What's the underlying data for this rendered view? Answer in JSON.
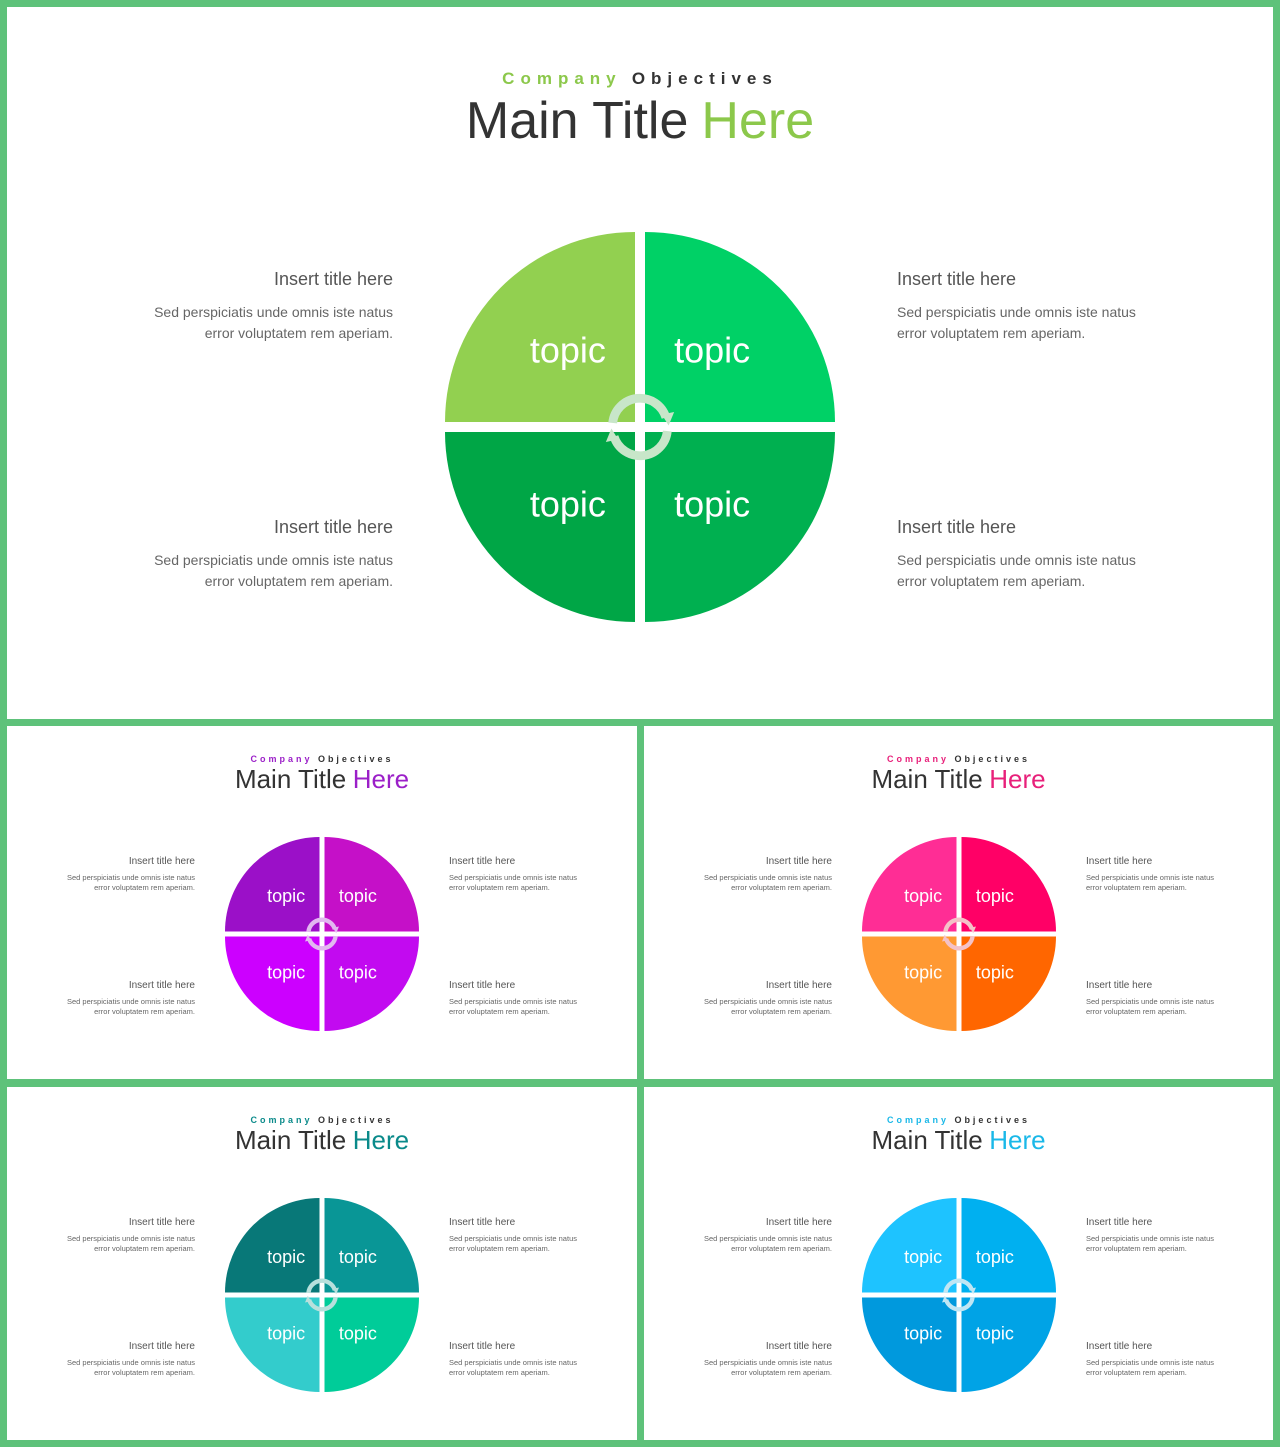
{
  "slides": [
    {
      "accent": "#8cc84b",
      "kicker": [
        "Company",
        "Objectives"
      ],
      "title": [
        "Main Title",
        "Here"
      ],
      "quadrant_colors": [
        "#92d050",
        "#00d166",
        "#00a646",
        "#00b050"
      ],
      "arrow_color": "#c8e6c9",
      "topics": [
        "topic",
        "topic",
        "topic",
        "topic"
      ],
      "blocks": [
        {
          "title": "Insert title here",
          "text": "Sed perspiciatis unde omnis iste natus error voluptatem  rem aperiam."
        },
        {
          "title": "Insert title here",
          "text": "Sed perspiciatis unde omnis iste natus error voluptatem  rem aperiam."
        },
        {
          "title": "Insert title here",
          "text": "Sed perspiciatis unde omnis iste natus error voluptatem  rem aperiam."
        },
        {
          "title": "Insert title here",
          "text": "Sed perspiciatis unde omnis iste natus error voluptatem  rem aperiam."
        }
      ]
    },
    {
      "accent": "#9b1fc8",
      "kicker": [
        "Company",
        "Objectives"
      ],
      "title": [
        "Main Title",
        "Here"
      ],
      "quadrant_colors": [
        "#9b10c8",
        "#c510c8",
        "#cc00ff",
        "#c20af0"
      ],
      "arrow_color": "#e2b8f0",
      "topics": [
        "topic",
        "topic",
        "topic",
        "topic"
      ],
      "blocks": [
        {
          "title": "Insert title here",
          "text": "Sed perspiciatis unde omnis iste natus error voluptatem  rem aperiam."
        },
        {
          "title": "Insert title here",
          "text": "Sed perspiciatis unde omnis iste natus error voluptatem  rem aperiam."
        },
        {
          "title": "Insert title here",
          "text": "Sed perspiciatis unde omnis iste natus error voluptatem  rem aperiam."
        },
        {
          "title": "Insert title here",
          "text": "Sed perspiciatis unde omnis iste natus error voluptatem  rem aperiam."
        }
      ]
    },
    {
      "accent": "#e8207a",
      "kicker": [
        "Company",
        "Objectives"
      ],
      "title": [
        "Main Title",
        "Here"
      ],
      "quadrant_colors": [
        "#ff2d95",
        "#ff0066",
        "#ff9933",
        "#ff6600"
      ],
      "arrow_color": "#f4c2c8",
      "topics": [
        "topic",
        "topic",
        "topic",
        "topic"
      ],
      "blocks": [
        {
          "title": "Insert title here",
          "text": "Sed perspiciatis unde omnis iste natus error voluptatem  rem aperiam."
        },
        {
          "title": "Insert title here",
          "text": "Sed perspiciatis unde omnis iste natus error voluptatem  rem aperiam."
        },
        {
          "title": "Insert title here",
          "text": "Sed perspiciatis unde omnis iste natus error voluptatem  rem aperiam."
        },
        {
          "title": "Insert title here",
          "text": "Sed perspiciatis unde omnis iste natus error voluptatem  rem aperiam."
        }
      ]
    },
    {
      "accent": "#0a8a8a",
      "kicker": [
        "Company",
        "Objectives"
      ],
      "title": [
        "Main Title",
        "Here"
      ],
      "quadrant_colors": [
        "#087878",
        "#099696",
        "#33cccc",
        "#00cc99"
      ],
      "arrow_color": "#b8e0dc",
      "topics": [
        "topic",
        "topic",
        "topic",
        "topic"
      ],
      "blocks": [
        {
          "title": "Insert title here",
          "text": "Sed perspiciatis unde omnis iste natus error voluptatem  rem aperiam."
        },
        {
          "title": "Insert title here",
          "text": "Sed perspiciatis unde omnis iste natus error voluptatem  rem aperiam."
        },
        {
          "title": "Insert title here",
          "text": "Sed perspiciatis unde omnis iste natus error voluptatem  rem aperiam."
        },
        {
          "title": "Insert title here",
          "text": "Sed perspiciatis unde omnis iste natus error voluptatem  rem aperiam."
        }
      ]
    },
    {
      "accent": "#1ab8e8",
      "kicker": [
        "Company",
        "Objectives"
      ],
      "title": [
        "Main Title",
        "Here"
      ],
      "quadrant_colors": [
        "#1ec3ff",
        "#00b0f0",
        "#0099dd",
        "#00a3e6"
      ],
      "arrow_color": "#c0e6f4",
      "topics": [
        "topic",
        "topic",
        "topic",
        "topic"
      ],
      "blocks": [
        {
          "title": "Insert title here",
          "text": "Sed perspiciatis unde omnis iste natus error voluptatem  rem aperiam."
        },
        {
          "title": "Insert title here",
          "text": "Sed perspiciatis unde omnis iste natus error voluptatem  rem aperiam."
        },
        {
          "title": "Insert title here",
          "text": "Sed perspiciatis unde omnis iste natus error voluptatem  rem aperiam."
        },
        {
          "title": "Insert title here",
          "text": "Sed perspiciatis unde omnis iste natus error voluptatem  rem aperiam."
        }
      ]
    }
  ]
}
